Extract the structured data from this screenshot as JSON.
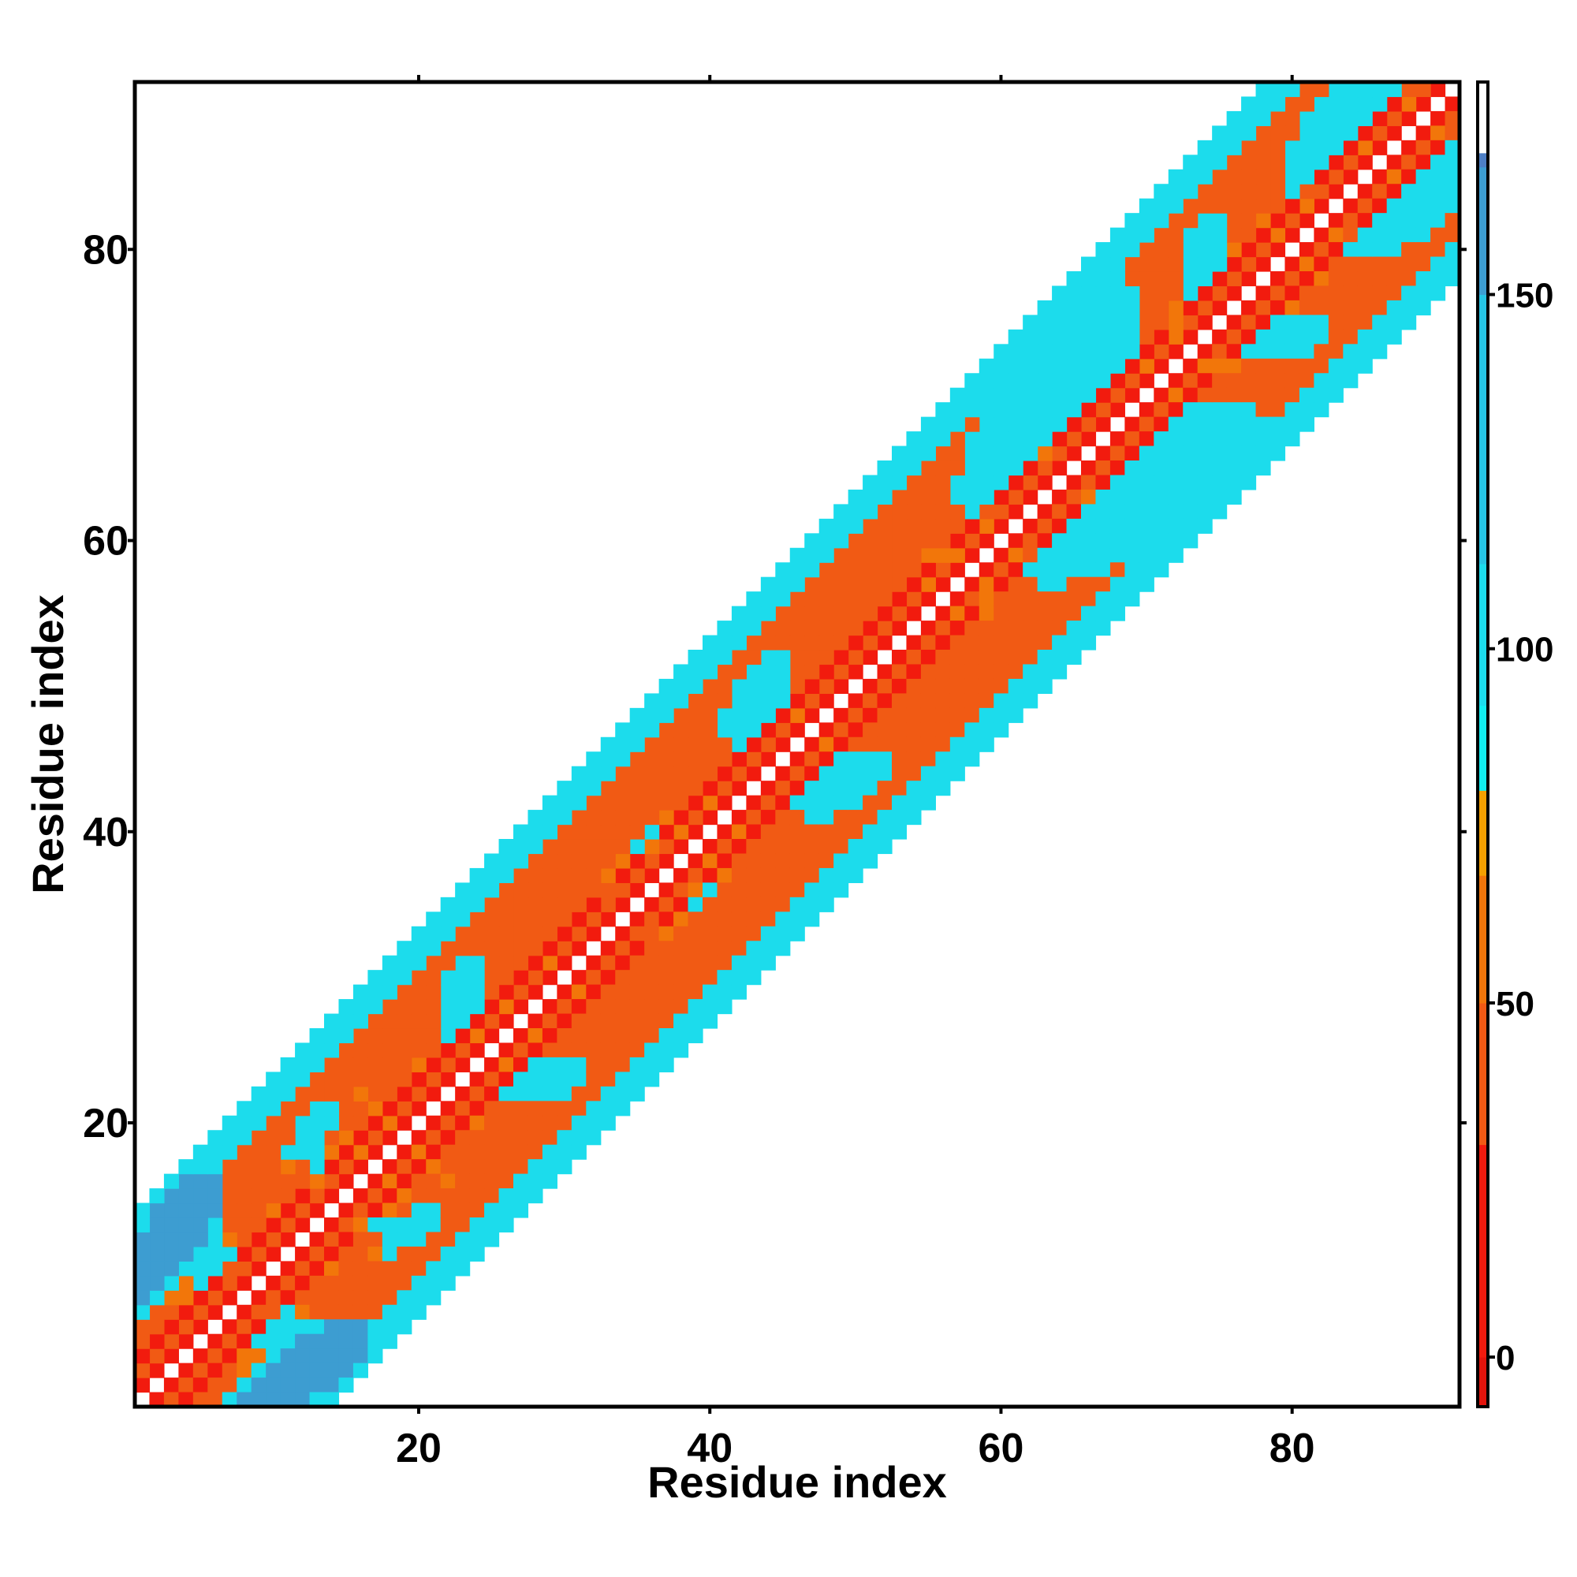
{
  "chart_data": {
    "type": "heatmap",
    "title": "",
    "xlabel": "Residue index",
    "ylabel": "Residue index",
    "xlim": [
      0.5,
      91.5
    ],
    "ylim": [
      0.5,
      91.5
    ],
    "xticks": [
      20,
      40,
      60,
      80
    ],
    "yticks": [
      20,
      40,
      60,
      80
    ],
    "grid": false,
    "colorbar": {
      "range": [
        -7,
        180
      ],
      "ticks": [
        0,
        50,
        100,
        150
      ],
      "scale": [
        {
          "from": -7,
          "to": 0,
          "color": "#e3140c"
        },
        {
          "from": 0,
          "to": 30,
          "color": "#f21b0e"
        },
        {
          "from": 30,
          "to": 50,
          "color": "#f15a14"
        },
        {
          "from": 50,
          "to": 68,
          "color": "#f2760a"
        },
        {
          "from": 68,
          "to": 80,
          "color": "#f5a000"
        },
        {
          "from": 80,
          "to": 92,
          "color": "#11eef0"
        },
        {
          "from": 92,
          "to": 112,
          "color": "#1cdcec"
        },
        {
          "from": 112,
          "to": 150,
          "color": "#26c4e4"
        },
        {
          "from": 150,
          "to": 168,
          "color": "#3d9dd1"
        },
        {
          "from": 168,
          "to": 170,
          "color": "#4e7fc5"
        },
        {
          "from": 170,
          "to": 180,
          "color": "#ffffff"
        }
      ]
    },
    "bands": [
      {
        "offset": 1,
        "values": [
          8,
          10,
          12,
          8,
          14,
          12,
          10,
          10,
          8,
          8,
          8,
          8,
          8,
          8,
          8,
          8,
          12,
          8,
          12,
          12,
          8,
          12,
          12,
          12,
          16,
          10,
          14,
          8,
          12,
          8,
          8,
          8,
          8,
          8,
          8,
          8,
          8,
          10,
          8,
          12,
          8,
          8,
          8,
          8,
          8,
          8,
          8,
          8,
          8,
          8,
          8,
          8,
          8,
          8,
          12,
          8,
          8,
          8,
          8,
          12,
          8,
          12,
          8,
          8,
          8,
          12,
          8,
          12,
          8,
          8,
          8,
          8,
          12,
          8,
          8,
          8,
          8,
          8,
          8,
          12,
          8,
          12,
          8,
          12,
          8,
          8,
          12,
          8,
          12,
          8
        ]
      },
      {
        "offset": 2,
        "values": [
          40,
          40,
          40,
          40,
          40,
          40,
          40,
          40,
          40,
          40,
          40,
          40,
          40,
          40,
          40,
          60,
          40,
          60,
          40,
          40,
          40,
          40,
          40,
          60,
          40,
          60,
          40,
          40,
          60,
          40,
          40,
          40,
          40,
          40,
          40,
          40,
          40,
          60,
          40,
          60,
          40,
          40,
          40,
          40,
          40,
          60,
          40,
          40,
          40,
          40,
          40,
          40,
          40,
          40,
          60,
          40,
          60,
          40,
          60,
          40,
          40,
          40,
          40,
          40,
          40,
          40,
          40,
          40,
          40,
          60,
          40,
          60,
          40,
          40,
          40,
          40,
          40,
          40,
          60,
          40,
          60,
          40,
          40,
          40,
          60,
          40,
          40,
          60,
          40
        ]
      },
      {
        "offset": 3,
        "values": [
          12,
          12,
          12,
          12,
          12,
          12,
          40,
          12,
          12,
          12,
          12,
          12,
          60,
          12,
          12,
          12,
          12,
          12,
          12,
          12,
          12,
          12,
          12,
          12,
          12,
          12,
          12,
          12,
          12,
          12,
          12,
          12,
          40,
          12,
          12,
          60,
          12,
          12,
          12,
          12,
          12,
          12,
          12,
          12,
          12,
          12,
          12,
          12,
          12,
          12,
          12,
          12,
          12,
          12,
          12,
          60,
          12,
          12,
          40,
          12,
          12,
          12,
          60,
          12,
          12,
          12,
          12,
          12,
          12,
          12,
          12,
          60,
          12,
          12,
          12,
          12,
          12,
          12,
          12,
          12,
          40,
          12,
          12,
          12,
          12,
          12,
          12,
          40
        ]
      },
      {
        "offset": 4,
        "values": [
          40,
          40,
          40,
          60,
          100,
          100,
          100,
          40,
          40,
          60,
          40,
          40,
          100,
          60,
          60,
          40,
          60,
          40,
          40,
          60,
          40,
          100,
          100,
          100,
          40,
          40,
          40,
          40,
          40,
          40,
          40,
          40,
          60,
          60,
          100,
          100,
          60,
          40,
          40,
          40,
          40,
          100,
          100,
          100,
          100,
          40,
          40,
          40,
          40,
          40,
          40,
          40,
          40,
          40,
          60,
          40,
          40,
          100,
          100,
          100,
          100,
          100,
          100,
          100,
          100,
          100,
          100,
          100,
          100,
          40,
          40,
          60,
          100,
          100,
          100,
          60,
          40,
          60,
          40,
          100,
          100,
          100,
          100,
          100,
          100,
          100,
          100
        ]
      },
      {
        "offset": 5,
        "values": [
          40,
          40,
          60,
          60,
          100,
          100,
          60,
          40,
          40,
          40,
          40,
          40,
          100,
          40,
          40,
          40,
          40,
          40,
          40,
          40,
          40,
          100,
          100,
          100,
          40,
          40,
          40,
          40,
          40,
          40,
          40,
          40,
          40,
          40,
          40,
          40,
          40,
          40,
          40,
          40,
          40,
          100,
          100,
          100,
          100,
          40,
          40,
          40,
          40,
          40,
          40,
          40,
          40,
          40,
          40,
          40,
          40,
          100,
          100,
          100,
          100,
          100,
          100,
          100,
          100,
          100,
          100,
          100,
          100,
          40,
          40,
          40,
          100,
          100,
          100,
          40,
          40,
          40,
          40,
          100,
          100,
          100,
          100,
          100,
          100,
          100
        ]
      },
      {
        "offset": 6,
        "values": [
          100,
          100,
          100,
          100,
          100,
          100,
          40,
          40,
          40,
          40,
          60,
          100,
          100,
          100,
          40,
          60,
          40,
          40,
          40,
          40,
          40,
          100,
          100,
          100,
          40,
          40,
          40,
          40,
          40,
          40,
          40,
          40,
          40,
          40,
          40,
          40,
          40,
          40,
          40,
          40,
          100,
          100,
          100,
          100,
          100,
          40,
          40,
          40,
          40,
          40,
          40,
          40,
          40,
          40,
          40,
          40,
          100,
          100,
          100,
          100,
          100,
          100,
          100,
          100,
          100,
          100,
          100,
          100,
          100,
          40,
          40,
          40,
          100,
          100,
          100,
          40,
          40,
          40,
          40,
          100,
          100,
          100,
          100,
          100,
          100
        ]
      },
      {
        "offset": 7,
        "values": [
          160,
          160,
          160,
          160,
          160,
          100,
          40,
          40,
          40,
          40,
          100,
          100,
          100,
          100,
          40,
          40,
          40,
          40,
          40,
          40,
          40,
          100,
          100,
          100,
          40,
          40,
          40,
          40,
          40,
          40,
          40,
          40,
          40,
          40,
          40,
          40,
          40,
          40,
          40,
          40,
          100,
          100,
          100,
          100,
          100,
          40,
          40,
          40,
          40,
          40,
          40,
          40,
          40,
          40,
          40,
          40,
          100,
          100,
          100,
          100,
          100,
          100,
          100,
          100,
          100,
          100,
          100,
          100,
          100,
          40,
          40,
          40,
          100,
          100,
          100,
          40,
          40,
          40,
          40,
          100,
          100,
          100,
          100,
          100,
          100
        ]
      },
      {
        "offset": 8,
        "values": [
          160,
          160,
          160,
          160,
          160,
          160,
          40,
          40,
          40,
          40,
          40,
          100,
          100,
          40,
          40,
          40,
          40,
          40,
          40,
          40,
          40,
          100,
          100,
          40,
          40,
          40,
          40,
          40,
          40,
          40,
          40,
          40,
          40,
          40,
          40,
          40,
          40,
          40,
          40,
          40,
          40,
          100,
          100,
          100,
          40,
          40,
          40,
          40,
          40,
          40,
          40,
          40,
          40,
          40,
          40,
          40,
          40,
          100,
          100,
          100,
          100,
          100,
          100,
          100,
          100,
          100,
          100,
          100,
          100,
          40,
          40,
          40,
          100,
          100,
          40,
          40,
          40,
          40,
          40,
          40,
          100,
          100,
          100,
          100
        ]
      },
      {
        "offset": 9,
        "values": [
          160,
          160,
          160,
          160,
          160,
          160,
          40,
          40,
          40,
          40,
          40,
          40,
          40,
          40,
          40,
          40,
          40,
          40,
          40,
          40,
          40,
          40,
          40,
          40,
          40,
          40,
          40,
          40,
          40,
          40,
          40,
          40,
          40,
          40,
          40,
          40,
          40,
          40,
          40,
          40,
          40,
          40,
          40,
          40,
          40,
          40,
          40,
          40,
          40,
          40,
          40,
          40,
          40,
          40,
          40,
          40,
          40,
          100,
          100,
          100,
          100,
          100,
          100,
          100,
          100,
          100,
          100,
          100,
          40,
          40,
          40,
          40,
          40,
          40,
          40,
          40,
          40,
          40,
          40,
          40,
          40,
          40,
          40
        ]
      },
      {
        "offset": 10,
        "values": [
          160,
          160,
          160,
          160,
          160,
          160,
          40,
          40,
          40,
          40,
          40,
          40,
          40,
          40,
          40,
          40,
          40,
          40,
          40,
          40,
          40,
          40,
          40,
          40,
          40,
          40,
          40,
          40,
          40,
          40,
          40,
          40,
          40,
          40,
          40,
          40,
          40,
          40,
          40,
          40,
          40,
          40,
          40,
          40,
          40,
          40,
          40,
          40,
          40,
          40,
          40,
          40,
          40,
          40,
          40,
          40,
          40,
          40,
          100,
          100,
          100,
          100,
          100,
          100,
          100,
          100,
          100,
          100,
          40,
          40,
          40,
          40,
          40,
          40,
          40,
          40,
          40,
          40,
          40,
          40,
          40,
          40
        ]
      },
      {
        "offset": 11,
        "values": [
          160,
          160,
          160,
          160,
          160,
          100,
          100,
          100,
          100,
          100,
          100,
          100,
          100,
          100,
          100,
          100,
          100,
          100,
          100,
          100,
          100,
          100,
          100,
          100,
          100,
          100,
          100,
          100,
          100,
          100,
          100,
          100,
          100,
          100,
          100,
          100,
          100,
          100,
          100,
          100,
          100,
          100,
          100,
          100,
          100,
          100,
          100,
          100,
          100,
          100,
          100,
          100,
          100,
          100,
          100,
          100,
          100,
          100,
          100,
          100,
          100,
          100,
          100,
          100,
          100,
          100,
          100,
          100,
          100,
          100,
          100,
          100,
          100,
          100,
          100,
          100,
          100,
          100,
          100,
          100,
          100
        ]
      },
      {
        "offset": 12,
        "values": [
          100,
          160,
          160,
          160,
          100,
          100,
          100,
          100,
          100,
          100,
          100,
          100,
          100,
          100,
          100,
          100,
          100,
          100,
          100,
          100,
          100,
          100,
          100,
          100,
          100,
          100,
          100,
          100,
          100,
          100,
          100,
          100,
          100,
          100,
          100,
          100,
          100,
          100,
          100,
          100,
          100,
          100,
          100,
          100,
          100,
          100,
          100,
          100,
          100,
          100,
          100,
          100,
          100,
          100,
          100,
          100,
          100,
          100,
          100,
          100,
          100,
          100,
          100,
          100,
          100,
          100,
          100,
          100,
          100,
          100,
          100,
          100,
          100,
          100,
          100,
          100,
          100,
          100,
          100,
          100
        ]
      },
      {
        "offset": 13,
        "values": [
          100,
          100,
          100,
          100,
          100,
          100,
          100,
          100,
          100,
          100,
          100,
          100,
          100,
          100,
          100,
          100,
          100,
          100,
          100,
          100,
          100,
          100,
          100,
          100,
          100,
          100,
          100,
          100,
          100,
          100,
          100,
          100,
          100,
          100,
          100,
          100,
          100,
          100,
          100,
          100,
          100,
          100,
          100,
          100,
          100,
          100,
          100,
          100,
          100,
          100,
          100,
          100,
          100,
          100,
          100,
          100,
          100,
          100,
          100,
          100,
          100,
          100,
          100,
          100,
          100,
          100,
          100,
          100,
          100,
          100,
          100,
          100,
          100,
          100,
          100,
          100,
          100,
          100,
          100
        ]
      }
    ]
  }
}
